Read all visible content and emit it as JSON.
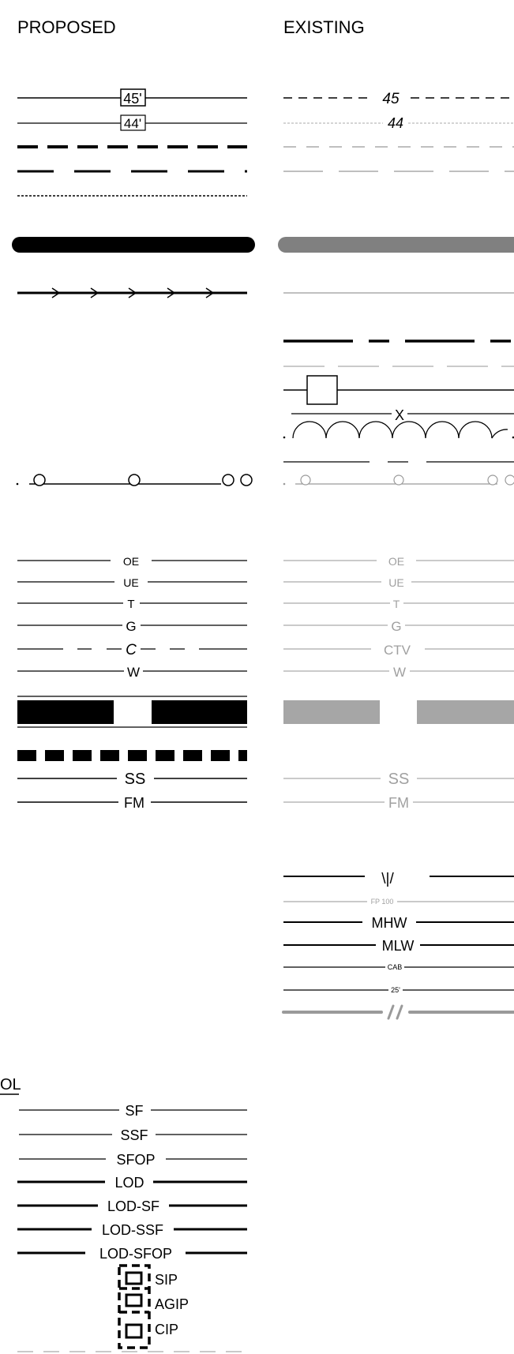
{
  "headers": {
    "proposed": "PROPOSED",
    "existing": "EXISTING"
  },
  "contours": {
    "proposed_major": "45'",
    "proposed_minor": "44'",
    "existing_major": "45",
    "existing_minor": "44"
  },
  "utilities": {
    "proposed": [
      "OE",
      "UE",
      "T",
      "G",
      "C",
      "W"
    ],
    "existing": [
      "OE",
      "UE",
      "T",
      "G",
      "CTV",
      "W"
    ]
  },
  "sewer": {
    "proposed": [
      "SS",
      "FM"
    ],
    "existing": [
      "SS",
      "FM"
    ]
  },
  "existing_misc": {
    "wetland": "\\|/",
    "floodplain": "FP 100",
    "mhw": "MHW",
    "mlw": "MLW",
    "cab": "CAB",
    "setback": "25'"
  },
  "erosion_control": {
    "title_fragment": "OL",
    "lines": [
      "SF",
      "SSF",
      "SFOP",
      "LOD",
      "LOD-SF",
      "LOD-SSF",
      "LOD-SFOP"
    ],
    "inlet_protection": [
      "SIP",
      "AGIP",
      "CIP"
    ]
  },
  "colors": {
    "ink": "#000000",
    "existing_gray": "#9a9a9a",
    "existing_dark_gray": "#808080",
    "existing_fill_gray": "#a6a6a6"
  }
}
